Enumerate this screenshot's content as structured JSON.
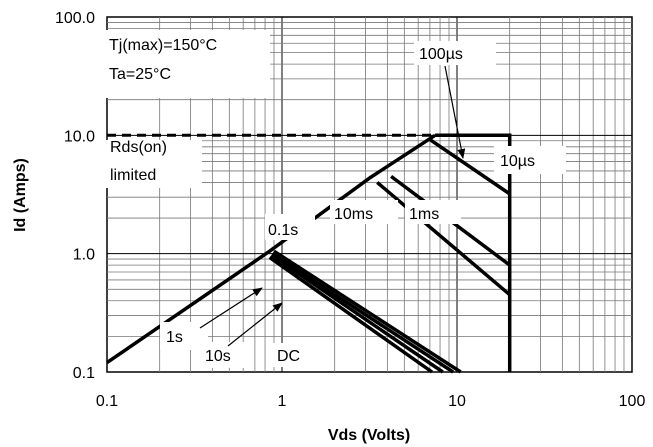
{
  "chart_data": {
    "type": "line",
    "title": "",
    "xlabel": "Vds (Volts)",
    "ylabel": "Id (Amps)",
    "x_scale": "log",
    "y_scale": "log",
    "xlim": [
      0.1,
      100
    ],
    "ylim": [
      0.1,
      100
    ],
    "x_tick_labels": [
      "0.1",
      "1",
      "10",
      "100"
    ],
    "y_tick_labels": [
      "0.1",
      "1.0",
      "10.0",
      "100.0"
    ],
    "grid": true,
    "series": [
      {
        "name": "100µs",
        "x": [
          7.5,
          20,
          20
        ],
        "y": [
          10,
          10,
          0.1
        ]
      },
      {
        "name": "10µs",
        "x": [
          7.0,
          20
        ],
        "y": [
          9.2,
          3.2
        ]
      },
      {
        "name": "1ms",
        "x": [
          4.2,
          20
        ],
        "y": [
          4.5,
          0.8
        ]
      },
      {
        "name": "10ms",
        "x": [
          3.5,
          20
        ],
        "y": [
          4.0,
          0.45
        ]
      },
      {
        "name": "0.1s",
        "x": [
          0.9,
          10.5
        ],
        "y": [
          1.05,
          0.1
        ]
      },
      {
        "name": "1s",
        "x": [
          0.88,
          9.5
        ],
        "y": [
          1.0,
          0.1
        ]
      },
      {
        "name": "10s",
        "x": [
          0.87,
          8.3
        ],
        "y": [
          0.97,
          0.1
        ]
      },
      {
        "name": "DC",
        "x": [
          0.85,
          7.2
        ],
        "y": [
          0.93,
          0.1
        ]
      }
    ],
    "envelope": {
      "x": [
        0.1,
        0.85,
        3.2,
        7.5
      ],
      "y": [
        0.12,
        1.05,
        4.4,
        10.0
      ]
    },
    "rds_limit": {
      "x": [
        0.1,
        7.5
      ],
      "y": [
        10,
        10
      ]
    },
    "annotations": {
      "tj_max": "Tj(max)=150°C",
      "ta": "Ta=25°C",
      "rds_line1": "Rds(on)",
      "rds_line2": "limited",
      "label_100us": "100µs",
      "label_10us": "10µs",
      "label_10ms": "10ms",
      "label_1ms": "1ms",
      "label_01s": "0.1s",
      "label_1s": "1s",
      "label_10s": "10s",
      "label_dc": "DC"
    }
  }
}
